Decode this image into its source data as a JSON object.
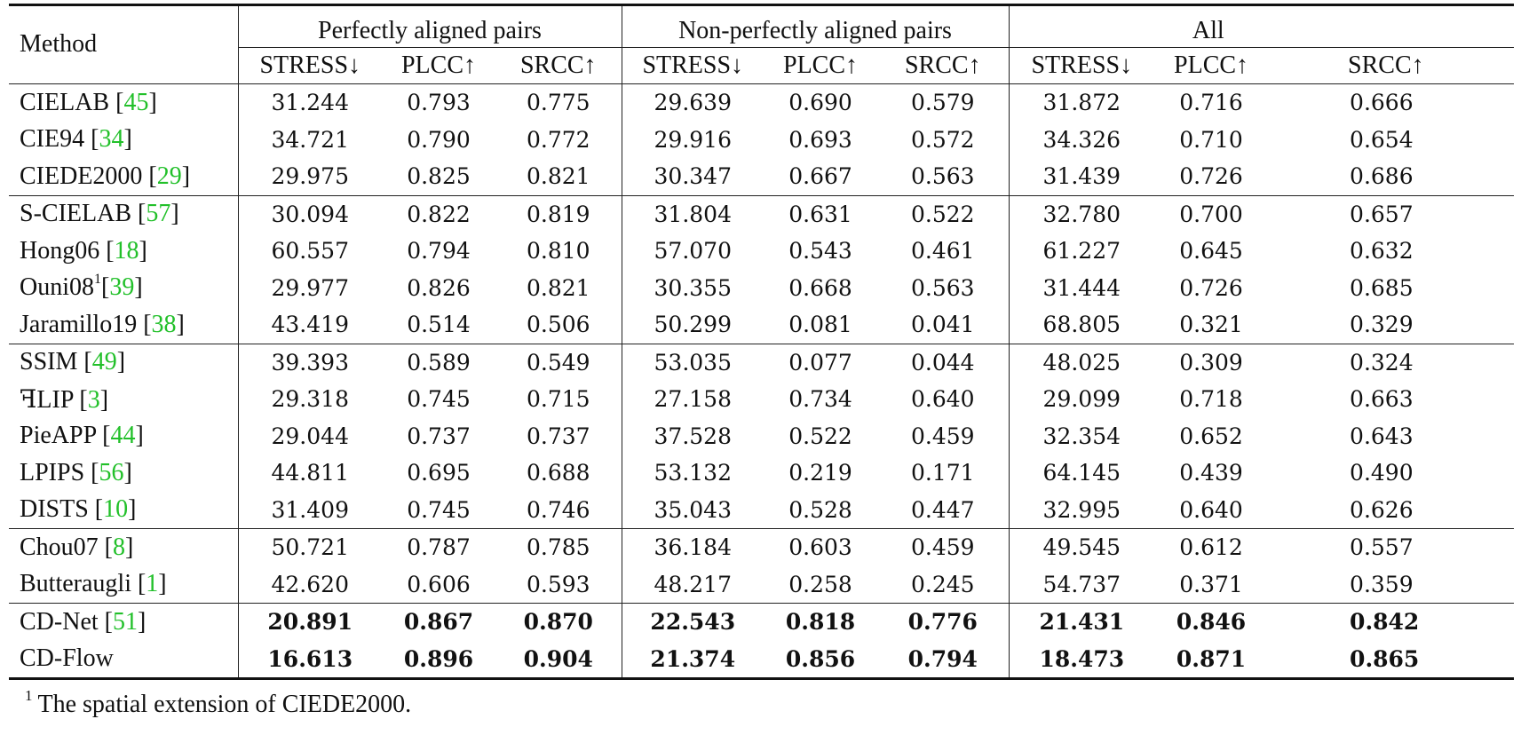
{
  "header": {
    "method": "Method",
    "groups": [
      "Perfectly aligned pairs",
      "Non-perfectly aligned pairs",
      "All"
    ],
    "metrics": [
      "STRESS↓",
      "PLCC↑",
      "SRCC↑"
    ]
  },
  "blocks": [
    [
      {
        "name": "CIELAB [",
        "cite": "45",
        "close": "]",
        "values": [
          "31.244",
          "0.793",
          "0.775",
          "29.639",
          "0.690",
          "0.579",
          "31.872",
          "0.716",
          "0.666"
        ]
      },
      {
        "name": "CIE94 [",
        "cite": "34",
        "close": "]",
        "values": [
          "34.721",
          "0.790",
          "0.772",
          "29.916",
          "0.693",
          "0.572",
          "34.326",
          "0.710",
          "0.654"
        ]
      },
      {
        "name": "CIEDE2000 [",
        "cite": "29",
        "close": "]",
        "values": [
          "29.975",
          "0.825",
          "0.821",
          "30.347",
          "0.667",
          "0.563",
          "31.439",
          "0.726",
          "0.686"
        ]
      }
    ],
    [
      {
        "name": "S-CIELAB [",
        "cite": "57",
        "close": "]",
        "values": [
          "30.094",
          "0.822",
          "0.819",
          "31.804",
          "0.631",
          "0.522",
          "32.780",
          "0.700",
          "0.657"
        ]
      },
      {
        "name": "Hong06 [",
        "cite": "18",
        "close": "]",
        "values": [
          "60.557",
          "0.794",
          "0.810",
          "57.070",
          "0.543",
          "0.461",
          "61.227",
          "0.645",
          "0.632"
        ]
      },
      {
        "name": "Ouni08",
        "sup": "1",
        "name2": "[",
        "cite": "39",
        "close": "]",
        "values": [
          "29.977",
          "0.826",
          "0.821",
          "30.355",
          "0.668",
          "0.563",
          "31.444",
          "0.726",
          "0.685"
        ]
      },
      {
        "name": "Jaramillo19 [",
        "cite": "38",
        "close": "]",
        "values": [
          "43.419",
          "0.514",
          "0.506",
          "50.299",
          "0.081",
          "0.041",
          "68.805",
          "0.321",
          "0.329"
        ]
      }
    ],
    [
      {
        "name": "SSIM [",
        "cite": "49",
        "close": "]",
        "values": [
          "39.393",
          "0.589",
          "0.549",
          "53.035",
          "0.077",
          "0.044",
          "48.025",
          "0.309",
          "0.324"
        ]
      },
      {
        "name": "ꟻLIP [",
        "cite": "3",
        "close": "]",
        "values": [
          "29.318",
          "0.745",
          "0.715",
          "27.158",
          "0.734",
          "0.640",
          "29.099",
          "0.718",
          "0.663"
        ]
      },
      {
        "name": "PieAPP [",
        "cite": "44",
        "close": "]",
        "values": [
          "29.044",
          "0.737",
          "0.737",
          "37.528",
          "0.522",
          "0.459",
          "32.354",
          "0.652",
          "0.643"
        ]
      },
      {
        "name": "LPIPS [",
        "cite": "56",
        "close": "]",
        "values": [
          "44.811",
          "0.695",
          "0.688",
          "53.132",
          "0.219",
          "0.171",
          "64.145",
          "0.439",
          "0.490"
        ]
      },
      {
        "name": "DISTS [",
        "cite": "10",
        "close": "]",
        "values": [
          "31.409",
          "0.745",
          "0.746",
          "35.043",
          "0.528",
          "0.447",
          "32.995",
          "0.640",
          "0.626"
        ]
      }
    ],
    [
      {
        "name": "Chou07 [",
        "cite": "8",
        "close": "]",
        "values": [
          "50.721",
          "0.787",
          "0.785",
          "36.184",
          "0.603",
          "0.459",
          "49.545",
          "0.612",
          "0.557"
        ]
      },
      {
        "name": "Butteraugli [",
        "cite": "1",
        "close": "]",
        "values": [
          "42.620",
          "0.606",
          "0.593",
          "48.217",
          "0.258",
          "0.245",
          "54.737",
          "0.371",
          "0.359"
        ]
      }
    ],
    [
      {
        "name": "CD-Net [",
        "cite": "51",
        "close": "]",
        "bold": true,
        "values": [
          "20.891",
          "0.867",
          "0.870",
          "22.543",
          "0.818",
          "0.776",
          "21.431",
          "0.846",
          "0.842"
        ]
      },
      {
        "name": "CD-Flow",
        "bold": true,
        "values": [
          "16.613",
          "0.896",
          "0.904",
          "21.374",
          "0.856",
          "0.794",
          "18.473",
          "0.871",
          "0.865"
        ]
      }
    ]
  ],
  "footnote": {
    "mark": "1",
    "text": "The spatial extension of CIEDE2000."
  }
}
